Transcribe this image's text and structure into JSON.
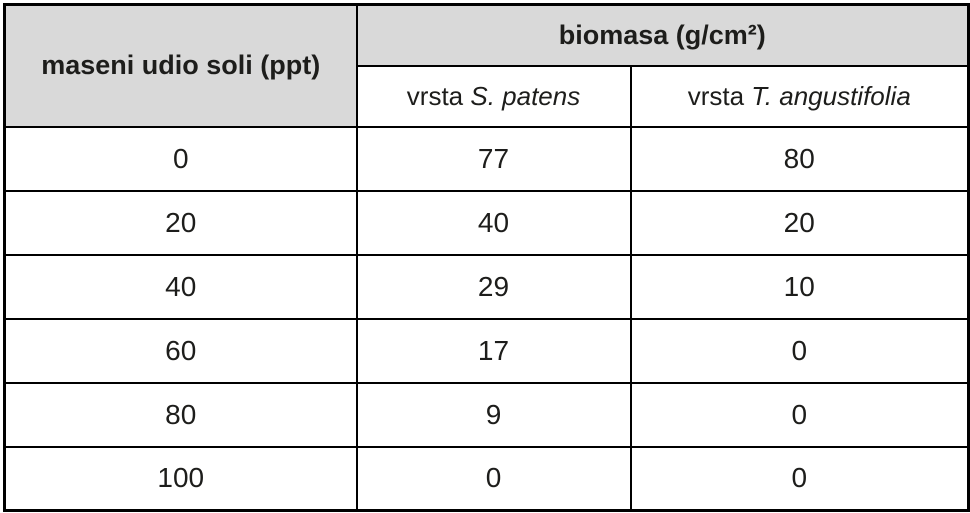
{
  "table": {
    "col1_header": "maseni udio soli (ppt)",
    "group_header": "biomasa (g/cm²)",
    "subheaders": [
      {
        "prefix": "vrsta",
        "species": "S. patens"
      },
      {
        "prefix": "vrsta",
        "species": "T. angustifolia"
      }
    ],
    "rows": [
      {
        "salt": "0",
        "v1": "77",
        "v2": "80"
      },
      {
        "salt": "20",
        "v1": "40",
        "v2": "20"
      },
      {
        "salt": "40",
        "v1": "29",
        "v2": "10"
      },
      {
        "salt": "60",
        "v1": "17",
        "v2": "0"
      },
      {
        "salt": "80",
        "v1": "9",
        "v2": "0"
      },
      {
        "salt": "100",
        "v1": "0",
        "v2": "0"
      }
    ],
    "colors": {
      "header_bg": "#d9d9d9",
      "border": "#000000",
      "text": "#1d1d1b"
    }
  },
  "chart_data": {
    "type": "table",
    "title": "",
    "xlabel": "maseni udio soli (ppt)",
    "ylabel": "biomasa (g/cm²)",
    "categories": [
      0,
      20,
      40,
      60,
      80,
      100
    ],
    "series": [
      {
        "name": "vrsta S. patens",
        "values": [
          77,
          40,
          29,
          17,
          9,
          0
        ]
      },
      {
        "name": "vrsta T. angustifolia",
        "values": [
          80,
          20,
          10,
          0,
          0,
          0
        ]
      }
    ]
  }
}
